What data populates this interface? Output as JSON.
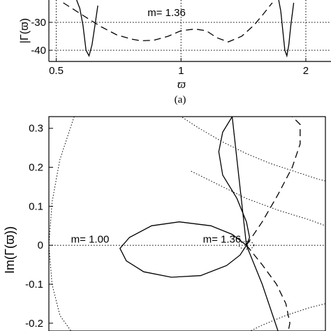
{
  "figure": {
    "panel_a_caption": "(a)"
  },
  "chart_data": [
    {
      "type": "line",
      "panel": "a",
      "xlabel": "ϖ",
      "ylabel": "|Γ(ϖ)",
      "xscale": "log",
      "xlim": [
        0.48,
        2.3
      ],
      "ylim": [
        -44,
        -22
      ],
      "x_ticks": [
        0.5,
        1,
        2
      ],
      "x_tick_labels": [
        "0.5",
        "1",
        "2"
      ],
      "y_ticks": [
        -30,
        -40
      ],
      "y_tick_labels": [
        "-30",
        "-40"
      ],
      "grid": true,
      "annotations": [
        {
          "text": "m= 1.36",
          "x": 0.83,
          "y": -27.8
        }
      ],
      "series": [
        {
          "style": "solid",
          "x": [
            0.56,
            0.57,
            0.58,
            0.59,
            0.6,
            0.61,
            0.62,
            0.63
          ],
          "y": [
            -22,
            -25,
            -31,
            -40,
            -42,
            -38,
            -31,
            -24
          ]
        },
        {
          "style": "solid",
          "x": [
            1.72,
            1.74,
            1.76,
            1.78,
            1.8,
            1.82,
            1.84,
            1.87
          ],
          "y": [
            -22,
            -26,
            -33,
            -40,
            -42,
            -38,
            -31,
            -23
          ]
        },
        {
          "style": "dashed",
          "x": [
            0.52,
            0.58,
            0.64,
            0.7,
            0.76,
            0.8,
            0.86,
            0.93,
            1.0,
            1.08,
            1.15,
            1.22,
            1.3,
            1.4,
            1.5,
            1.58,
            1.66
          ],
          "y": [
            -23,
            -27.5,
            -31.5,
            -34.5,
            -36,
            -36.6,
            -36.4,
            -35,
            -33,
            -32.4,
            -33,
            -35.5,
            -37,
            -35,
            -31,
            -27,
            -23
          ]
        }
      ]
    },
    {
      "type": "line",
      "panel": "b",
      "ylabel": "Im(Γ(ϖ))",
      "xlim": [
        -0.25,
        0.1
      ],
      "ylim": [
        -0.22,
        0.33
      ],
      "y_ticks": [
        0.3,
        0.2,
        0.1,
        0,
        -0.1,
        -0.2
      ],
      "y_tick_labels": [
        "0.3",
        "0.2",
        "0.1",
        "0",
        "-0.1",
        "-0.2"
      ],
      "grid": false,
      "annotations": [
        {
          "text": "m= 1.00",
          "x": -0.222,
          "y": 0.007
        },
        {
          "text": "m= 1.36",
          "x": -0.055,
          "y": 0.007
        }
      ],
      "series": [
        {
          "style": "solid",
          "x": [
            0.0,
            -0.018,
            -0.045,
            -0.085,
            -0.12,
            -0.148,
            -0.16,
            -0.152,
            -0.13,
            -0.095,
            -0.058,
            -0.025,
            -0.008,
            0.0,
            0.004,
            0.0,
            -0.012,
            -0.03,
            -0.035,
            -0.03,
            -0.018,
            0.0,
            0.02,
            0.04
          ],
          "y": [
            0.0,
            0.028,
            0.05,
            0.06,
            0.05,
            0.02,
            -0.008,
            -0.04,
            -0.068,
            -0.082,
            -0.078,
            -0.052,
            -0.025,
            0.0,
            0.02,
            0.06,
            0.12,
            0.18,
            0.24,
            0.29,
            0.33,
            0.0,
            -0.1,
            -0.22
          ]
        },
        {
          "style": "dashed",
          "x": [
            0.0,
            0.02,
            0.04,
            0.058,
            0.068,
            0.068,
            0.058,
            0.043
          ],
          "y": [
            0.0,
            0.06,
            0.13,
            0.2,
            0.26,
            0.31,
            0.33,
            0.34
          ]
        },
        {
          "style": "dashed",
          "x": [
            0.0,
            0.02,
            0.038,
            0.05,
            0.055,
            0.052
          ],
          "y": [
            0.0,
            -0.05,
            -0.1,
            -0.15,
            -0.2,
            -0.23
          ]
        },
        {
          "style": "dotted",
          "x": [
            -0.09,
            -0.06,
            -0.03,
            0.0,
            0.03,
            0.06,
            0.09,
            0.1
          ],
          "y": [
            0.34,
            0.3,
            0.265,
            0.235,
            0.21,
            0.19,
            0.17,
            0.165
          ]
        },
        {
          "style": "dotted",
          "x": [
            -0.07,
            -0.04,
            0.0,
            0.04,
            0.08,
            0.1
          ],
          "y": [
            0.19,
            0.16,
            0.12,
            0.09,
            0.065,
            0.05
          ]
        },
        {
          "style": "dotted",
          "x": [
            -0.01,
            0.02,
            0.05,
            0.08,
            0.1
          ],
          "y": [
            -0.235,
            -0.205,
            -0.18,
            -0.16,
            -0.15
          ]
        },
        {
          "style": "dotted",
          "x": [
            -0.218,
            -0.236,
            -0.246,
            -0.25,
            -0.246,
            -0.236,
            -0.222
          ],
          "y": [
            0.33,
            0.22,
            0.11,
            0.0,
            -0.1,
            -0.18,
            -0.22
          ]
        },
        {
          "style": "dotted",
          "x": [
            -0.25,
            0.1
          ],
          "y": [
            0.0,
            0.0
          ]
        },
        {
          "style": "dotted",
          "x": [
            0.01,
            0.008,
            0.004,
            0.0,
            -0.004,
            -0.008,
            -0.01,
            -0.008,
            -0.004,
            0.0,
            0.004,
            0.008,
            0.01
          ],
          "y": [
            0.0,
            0.006,
            0.009,
            0.01,
            0.009,
            0.006,
            0.0,
            -0.006,
            -0.009,
            -0.01,
            -0.009,
            -0.006,
            0.0
          ]
        }
      ]
    }
  ]
}
